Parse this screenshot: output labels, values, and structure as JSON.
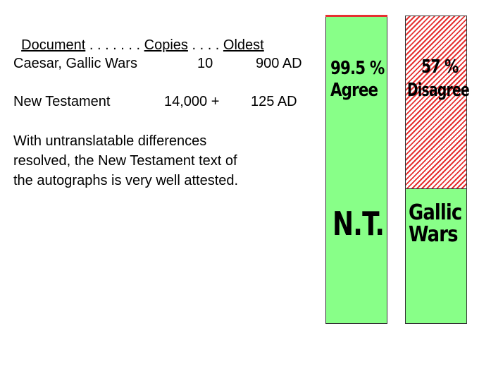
{
  "table": {
    "header": {
      "col1": "Document",
      "dots1": " . . . . . . . ",
      "col2": "Copies",
      "dots2": " . . . . ",
      "col3": "Oldest"
    },
    "rows": [
      {
        "document": "Caesar, Gallic Wars",
        "copies": "10",
        "oldest": "900 AD"
      },
      {
        "document": "New Testament",
        "copies": "14,000 +",
        "oldest": "125 AD"
      }
    ]
  },
  "paragraph": {
    "line1": "With untranslatable differences",
    "line2": "resolved, the New Testament text of",
    "line3": "the autographs is very well attested."
  },
  "bars": {
    "nt": {
      "pct": "99.5 %",
      "pct_label": "Agree",
      "name": "N.T.",
      "agree_fraction": 0.995,
      "color": "#88ff88",
      "top_line_color": "#e53030"
    },
    "gallic": {
      "pct": "57 %",
      "pct_label": "Disagree",
      "name_line1": "Gallic",
      "name_line2": "Wars",
      "disagree_fraction": 0.57,
      "color": "#88ff88",
      "hatch_color": "#e53030"
    }
  }
}
